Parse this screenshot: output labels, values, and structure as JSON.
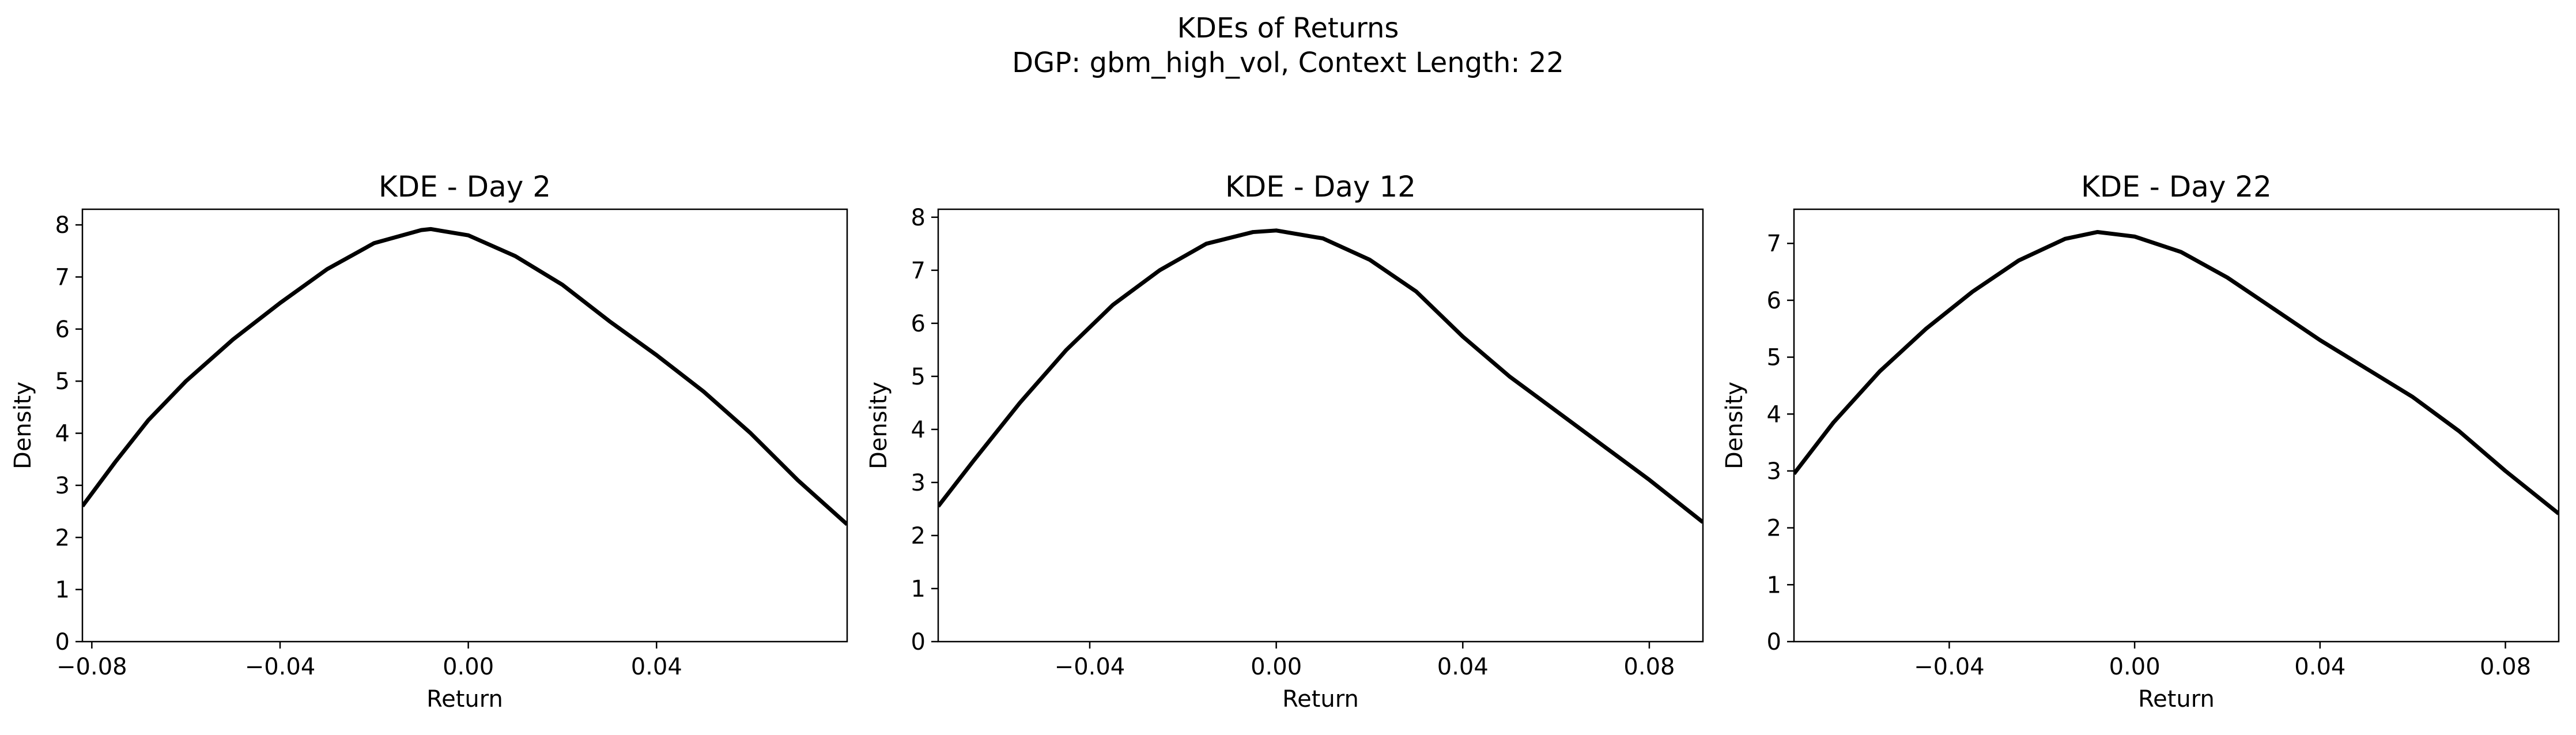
{
  "figure": {
    "title_line1": "KDEs of Returns",
    "title_line2": "DGP: gbm_high_vol, Context Length: 22"
  },
  "chart_data": [
    {
      "type": "line",
      "title": "KDE - Day 2",
      "xlabel": "Return",
      "ylabel": "Density",
      "xlim": [
        -0.082,
        0.0805
      ],
      "ylim": [
        0,
        8.3
      ],
      "xticks": [
        -0.08,
        -0.04,
        0.0,
        0.04
      ],
      "xtick_labels": [
        "−0.08",
        "−0.04",
        "0.00",
        "0.04"
      ],
      "yticks": [
        0,
        1,
        2,
        3,
        4,
        5,
        6,
        7,
        8
      ],
      "ytick_labels": [
        "0",
        "1",
        "2",
        "3",
        "4",
        "5",
        "6",
        "7",
        "8"
      ],
      "grid": false,
      "line_color": "#000000",
      "series": [
        {
          "x": [
            -0.082,
            -0.075,
            -0.068,
            -0.06,
            -0.05,
            -0.04,
            -0.03,
            -0.02,
            -0.01,
            -0.008,
            0.0,
            0.01,
            0.02,
            0.03,
            0.04,
            0.05,
            0.06,
            0.07,
            0.0805
          ],
          "y": [
            2.6,
            3.45,
            4.25,
            5.0,
            5.8,
            6.5,
            7.15,
            7.65,
            7.9,
            7.92,
            7.8,
            7.4,
            6.85,
            6.15,
            5.5,
            4.8,
            4.0,
            3.1,
            2.25
          ]
        }
      ]
    },
    {
      "type": "line",
      "title": "KDE - Day 12",
      "xlabel": "Return",
      "ylabel": "Density",
      "xlim": [
        -0.0725,
        0.0915
      ],
      "ylim": [
        0,
        8.15
      ],
      "xticks": [
        -0.04,
        0.0,
        0.04,
        0.08
      ],
      "xtick_labels": [
        "−0.04",
        "0.00",
        "0.04",
        "0.08"
      ],
      "yticks": [
        0,
        1,
        2,
        3,
        4,
        5,
        6,
        7,
        8
      ],
      "ytick_labels": [
        "0",
        "1",
        "2",
        "3",
        "4",
        "5",
        "6",
        "7",
        "8"
      ],
      "grid": false,
      "line_color": "#000000",
      "series": [
        {
          "x": [
            -0.0725,
            -0.065,
            -0.055,
            -0.045,
            -0.035,
            -0.025,
            -0.015,
            -0.005,
            0.0,
            0.01,
            0.02,
            0.03,
            0.04,
            0.05,
            0.06,
            0.07,
            0.08,
            0.0915
          ],
          "y": [
            2.55,
            3.4,
            4.5,
            5.5,
            6.35,
            7.0,
            7.5,
            7.72,
            7.75,
            7.6,
            7.2,
            6.6,
            5.75,
            5.0,
            4.35,
            3.7,
            3.05,
            2.25
          ]
        }
      ]
    },
    {
      "type": "line",
      "title": "KDE - Day 22",
      "xlabel": "Return",
      "ylabel": "Density",
      "xlim": [
        -0.0735,
        0.0915
      ],
      "ylim": [
        0,
        7.6
      ],
      "xticks": [
        -0.04,
        0.0,
        0.04,
        0.08
      ],
      "xtick_labels": [
        "−0.04",
        "0.00",
        "0.04",
        "0.08"
      ],
      "yticks": [
        0,
        1,
        2,
        3,
        4,
        5,
        6,
        7
      ],
      "ytick_labels": [
        "0",
        "1",
        "2",
        "3",
        "4",
        "5",
        "6",
        "7"
      ],
      "grid": false,
      "line_color": "#000000",
      "series": [
        {
          "x": [
            -0.0735,
            -0.065,
            -0.055,
            -0.045,
            -0.035,
            -0.025,
            -0.015,
            -0.008,
            0.0,
            0.01,
            0.02,
            0.03,
            0.04,
            0.05,
            0.06,
            0.07,
            0.08,
            0.0915
          ],
          "y": [
            2.95,
            3.85,
            4.75,
            5.5,
            6.15,
            6.7,
            7.08,
            7.2,
            7.12,
            6.85,
            6.4,
            5.85,
            5.3,
            4.8,
            4.3,
            3.7,
            3.0,
            2.25
          ]
        }
      ]
    }
  ]
}
